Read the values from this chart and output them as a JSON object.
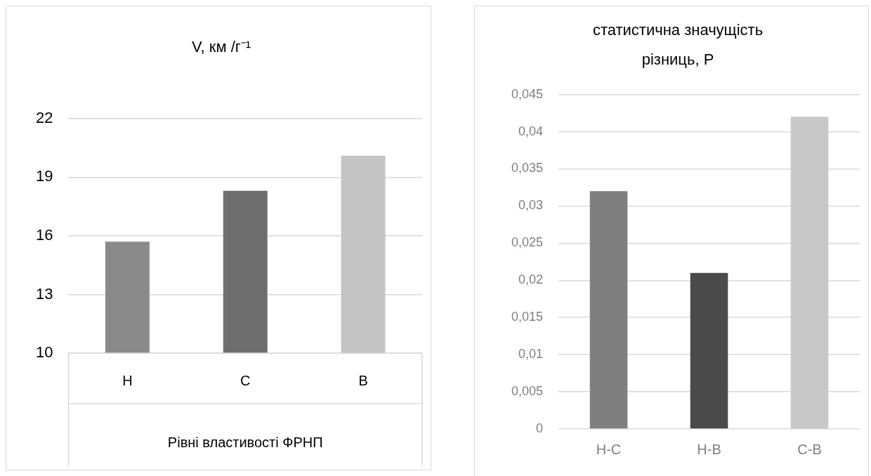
{
  "chart_data": [
    {
      "type": "bar",
      "title": "V, км /г⁻¹",
      "xlabel": "Рівні властивості ФРНП",
      "categories": [
        "Н",
        "С",
        "В"
      ],
      "values": [
        15.7,
        18.3,
        20.1
      ],
      "colors": [
        "#8a8a8a",
        "#6e6e6e",
        "#c4c4c4"
      ],
      "ylim": [
        10,
        22
      ],
      "yticks": [
        10,
        13,
        16,
        19,
        22
      ],
      "grid": "y",
      "legend": false
    },
    {
      "type": "bar",
      "title": "статистична значущість різниць, P",
      "categories": [
        "Н-С",
        "Н-В",
        "С-В"
      ],
      "values": [
        0.032,
        0.021,
        0.042
      ],
      "colors": [
        "#7f7f7f",
        "#4a4a4a",
        "#c8c8c8"
      ],
      "ylim": [
        0,
        0.045
      ],
      "yticks": [
        {
          "value": 0,
          "label": "0"
        },
        {
          "value": 0.005,
          "label": "0,005"
        },
        {
          "value": 0.01,
          "label": "0,01"
        },
        {
          "value": 0.015,
          "label": "0,015"
        },
        {
          "value": 0.02,
          "label": "0,02"
        },
        {
          "value": 0.025,
          "label": "0,025"
        },
        {
          "value": 0.03,
          "label": "0,03"
        },
        {
          "value": 0.035,
          "label": "0,035"
        },
        {
          "value": 0.04,
          "label": "0,04"
        },
        {
          "value": 0.045,
          "label": "0,045"
        }
      ],
      "grid": "y",
      "legend": false
    }
  ]
}
